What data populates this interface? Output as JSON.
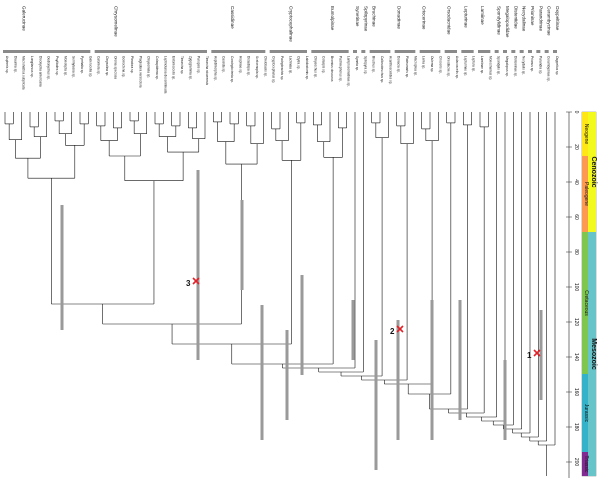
{
  "figure": {
    "taxa": [
      "Aspheris sp.",
      "Diaumia sp.",
      "Macrohattica subplicata",
      "Longitarsus sp.",
      "Disonycha americana",
      "Oedionychus sp.",
      "Psylliodes sp.",
      "Monolepta sp.",
      "Sermylassa sp.",
      "Pyrrhalta sp.",
      "Galerucella sp.",
      "Calomela sp.",
      "Chrysolina sp.",
      "Oreina speciosa",
      "Gonioctena sp.",
      "Phratora sp.",
      "Plagiodera versicolora",
      "Chrysomela sp.",
      "Colaspidema sp.",
      "Leptinotarsa decemlineata",
      "Entomoscelis sp.",
      "Timarcha sp.",
      "Zygogramma sp.",
      "Paropsis sp.",
      "Timarcha nicaeensis",
      "Aspidimorpha sp.",
      "Cassida sp.",
      "Conchyloctenia sp.",
      "Hispinae sp.",
      "Dicladispa sp.",
      "Sceloenopla sp.",
      "Chelobasis sp.",
      "Cryptocephalus sp.",
      "Pachybrachis sp.",
      "Lachnaia sp.",
      "Clytra sp.",
      "Labidostomis sp.",
      "Chrysochus sp.",
      "Colaspis sp.",
      "Bromius obscurus",
      "Pachnephorus sp.",
      "Lamprosomatinae sp.",
      "Syneta sp.",
      "Spilopyra sp.",
      "Bruchus sp.",
      "Callosobruchus sp.",
      "Acanthoscelides sp.",
      "Donacia sp.",
      "Plateumaris sp.",
      "Macroplea sp.",
      "Lema sp.",
      "Oulema sp.",
      "Crioceris sp.",
      "Orsodacne sp.",
      "Aulacoscelis sp.",
      "Lepturinae sp.",
      "Leptura sp.",
      "Lamiinae sp.",
      "Monochamus sp.",
      "Spondylis sp.",
      "Megalopus sp.",
      "Disteniinae sp.",
      "Necydalis sp.",
      "Prionus sp.",
      "Parandra sp.",
      "Cerambycinae sp.",
      "Oxypeltus sp."
    ],
    "clades": [
      "Galerucinae",
      "Chrysomelinae",
      "Cassidinae",
      "Cryptocephalinae",
      "Eumolpinae",
      "Synetinae",
      "Spilopyrinae",
      "Bruchinae",
      "Donaciinae",
      "Criocerinae",
      "Orsodacnidae",
      "Lepturinae",
      "Lamiinae",
      "Spondylidinae",
      "Megalopodidae",
      "Disteniidae",
      "Necydalinae",
      "Prioninae",
      "Parandrinae",
      "Cerambycinae",
      "Oxypeltinae"
    ],
    "calibration_labels": [
      "3",
      "2",
      "1"
    ],
    "axis_ticks": [
      "0",
      "20",
      "40",
      "60",
      "80",
      "100",
      "120",
      "140",
      "160",
      "180",
      "200"
    ],
    "timescale": {
      "eras": [
        "Cenozoic",
        "Mesozoic"
      ],
      "periods": [
        "Neogene",
        "Paleogene",
        "Cretaceous",
        "Jurassic",
        "Triassic"
      ],
      "colors": {
        "neogene": "#ffe617",
        "paleogene": "#fd9a52",
        "cretaceous": "#7fc64e",
        "jurassic": "#34b2c9",
        "triassic": "#812b92",
        "cenozoic": "#f2f91d",
        "mesozoic": "#67c5ca"
      }
    }
  }
}
